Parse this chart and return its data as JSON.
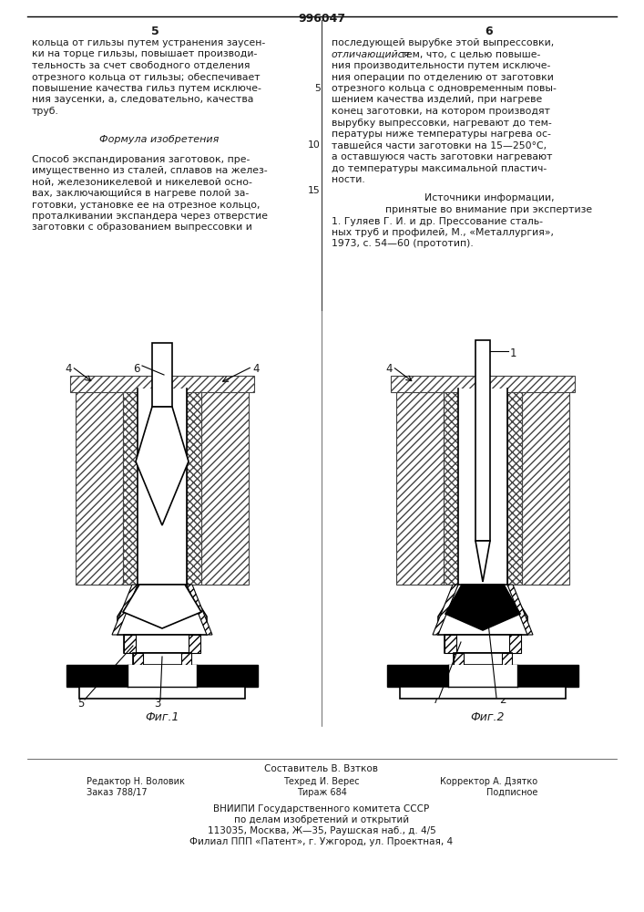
{
  "patent_number": "996047",
  "page_left_number": "5",
  "page_right_number": "6",
  "col_left_text": [
    "кольца от гильзы путем устранения заусен-",
    "ки на торце гильзы, повышает производи-",
    "тельность за счет свободного отделения",
    "отрезного кольца от гильзы; обеспечивает",
    "повышение качества гильз путем исключе-",
    "ния заусенки, а, следовательно, качества",
    "труб."
  ],
  "formula_title": "Формула изобретения",
  "formula_text": [
    "Способ экспандирования заготовок, пре-",
    "имущественно из сталей, сплавов на желез-",
    "ной, железоникелевой и никелевой осно-",
    "вах, заключающийся в нагреве полой за-",
    "готовки, установке ее на отрезное кольцо,",
    "проталкивании экспандера через отверстие",
    "заготовки с образованием выпрессовки и"
  ],
  "col_right_line1": "последующей вырубке этой выпрессовки,",
  "col_right_line2_italic": "отличающийся",
  "col_right_line2_rest": " тем, что, с целью повыше-",
  "col_right_text": [
    "ния производительности путем исключе-",
    "ния операции по отделению от заготовки",
    "отрезного кольца с одновременным повы-",
    "шением качества изделий, при нагреве",
    "конец заготовки, на котором производят",
    "вырубку выпрессовки, нагревают до тем-",
    "пературы ниже температуры нагрева ос-",
    "тавшейся части заготовки на 15—250°С,",
    "а оставшуюся часть заготовки нагревают",
    "до температуры максимальной пластич-",
    "ности."
  ],
  "sources_title": "Источники информации,",
  "sources_subtitle": "принятые во внимание при экспертизе",
  "sources_text": "1. Гуляев Г. И. и др. Прессование сталь-",
  "sources_text2": "ных труб и профилей, М., «Металлургия»,",
  "sources_text3": "1973, с. 54—60 (прототип).",
  "fig1_label": "Фиг.1",
  "fig2_label": "Фиг.2",
  "bottom_author": "Составитель В. Взтков",
  "bottom_editor": "Редактор Н. Воловик",
  "bottom_techred": "Техред И. Верес",
  "bottom_corrector": "Корректор А. Дзятко",
  "bottom_order": "Заказ 788/17",
  "bottom_tirazh": "Тираж 684",
  "bottom_podpisnoe": "Подписное",
  "bottom_vniip1": "ВНИИПИ Государственного комитета СССР",
  "bottom_vniip2": "по делам изобретений и открытий",
  "bottom_vniip3": "113035, Москва, Ж—35, Раушская наб., д. 4/5",
  "bottom_vniip4": "Филиал ППП «Патент», г. Ужгород, ул. Проектная, 4",
  "bg_color": "#ffffff",
  "text_color": "#1a1a1a",
  "hatch_color": "#333333",
  "black_color": "#000000"
}
